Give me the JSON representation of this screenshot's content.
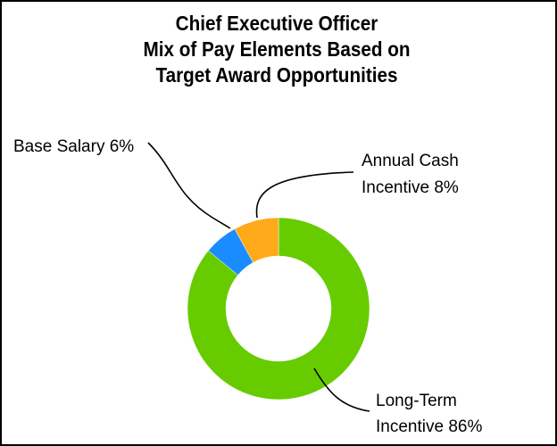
{
  "chart_data": {
    "type": "pie",
    "title_lines": [
      "Chief Executive Officer",
      "Mix of Pay Elements Based on",
      "Target Award Opportunities"
    ],
    "slices": [
      {
        "key": "long-term-incentive",
        "label_lines": [
          "Long-Term",
          "Incentive 86%"
        ],
        "value": 86,
        "color": "#66cc00"
      },
      {
        "key": "base-salary",
        "label_lines": [
          "Base Salary 6%"
        ],
        "value": 6,
        "color": "#1a8cff"
      },
      {
        "key": "annual-cash-incentive",
        "label_lines": [
          "Annual Cash",
          "Incentive 8%"
        ],
        "value": 8,
        "color": "#ffaa1a"
      }
    ],
    "style": "donut",
    "legend": "none"
  }
}
